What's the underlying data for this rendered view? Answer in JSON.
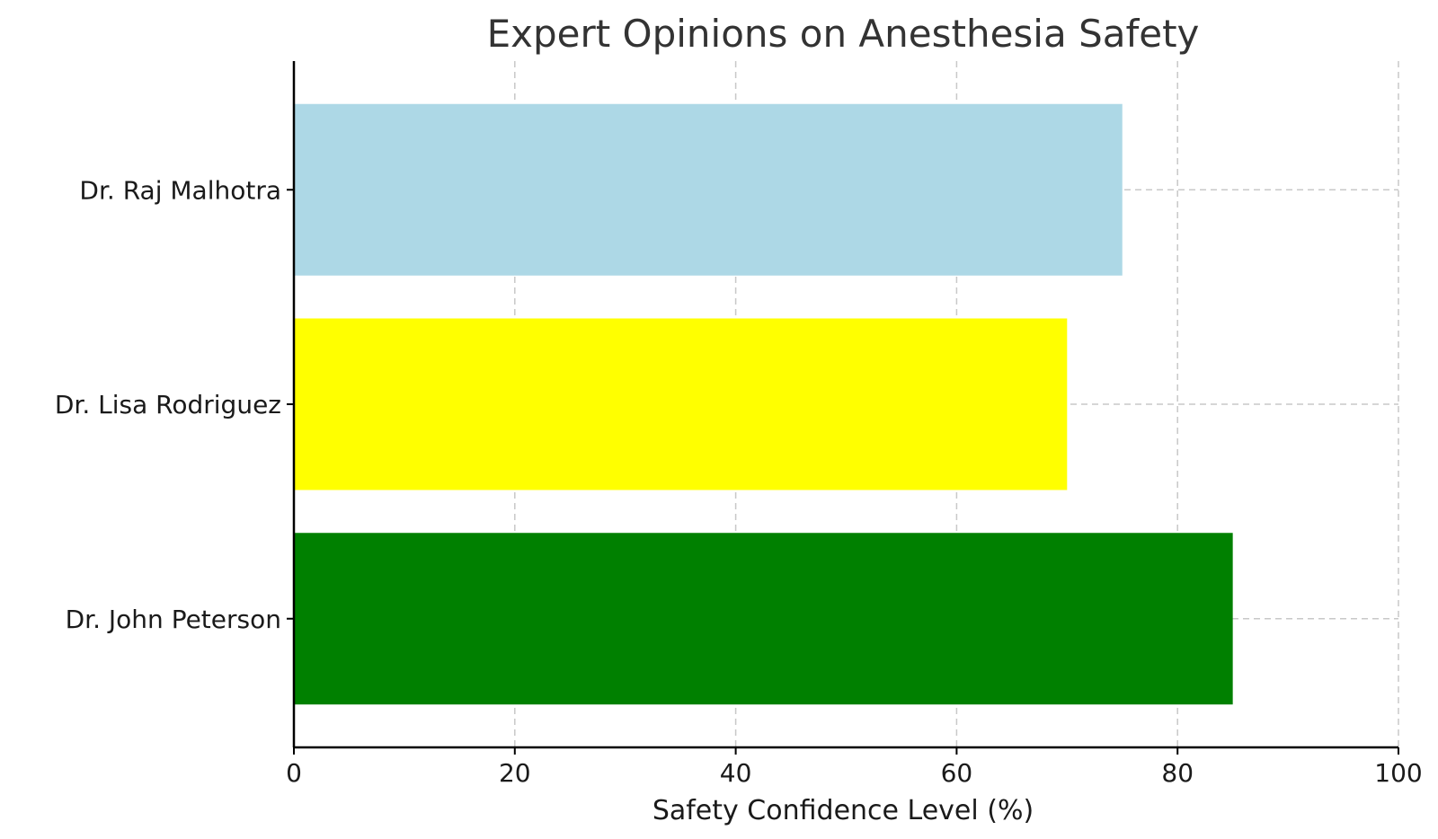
{
  "chart_data": {
    "type": "bar",
    "orientation": "horizontal",
    "title": "Expert Opinions on Anesthesia Safety",
    "xlabel": "Safety Confidence Level (%)",
    "ylabel": "",
    "xlim": [
      0,
      100
    ],
    "xticks": [
      0,
      20,
      40,
      60,
      80,
      100
    ],
    "grid": true,
    "categories": [
      "Dr. John Peterson",
      "Dr. Lisa Rodriguez",
      "Dr. Raj Malhotra"
    ],
    "values": [
      85,
      70,
      75
    ],
    "colors": [
      "#008000",
      "#ffff00",
      "#add8e6"
    ]
  }
}
